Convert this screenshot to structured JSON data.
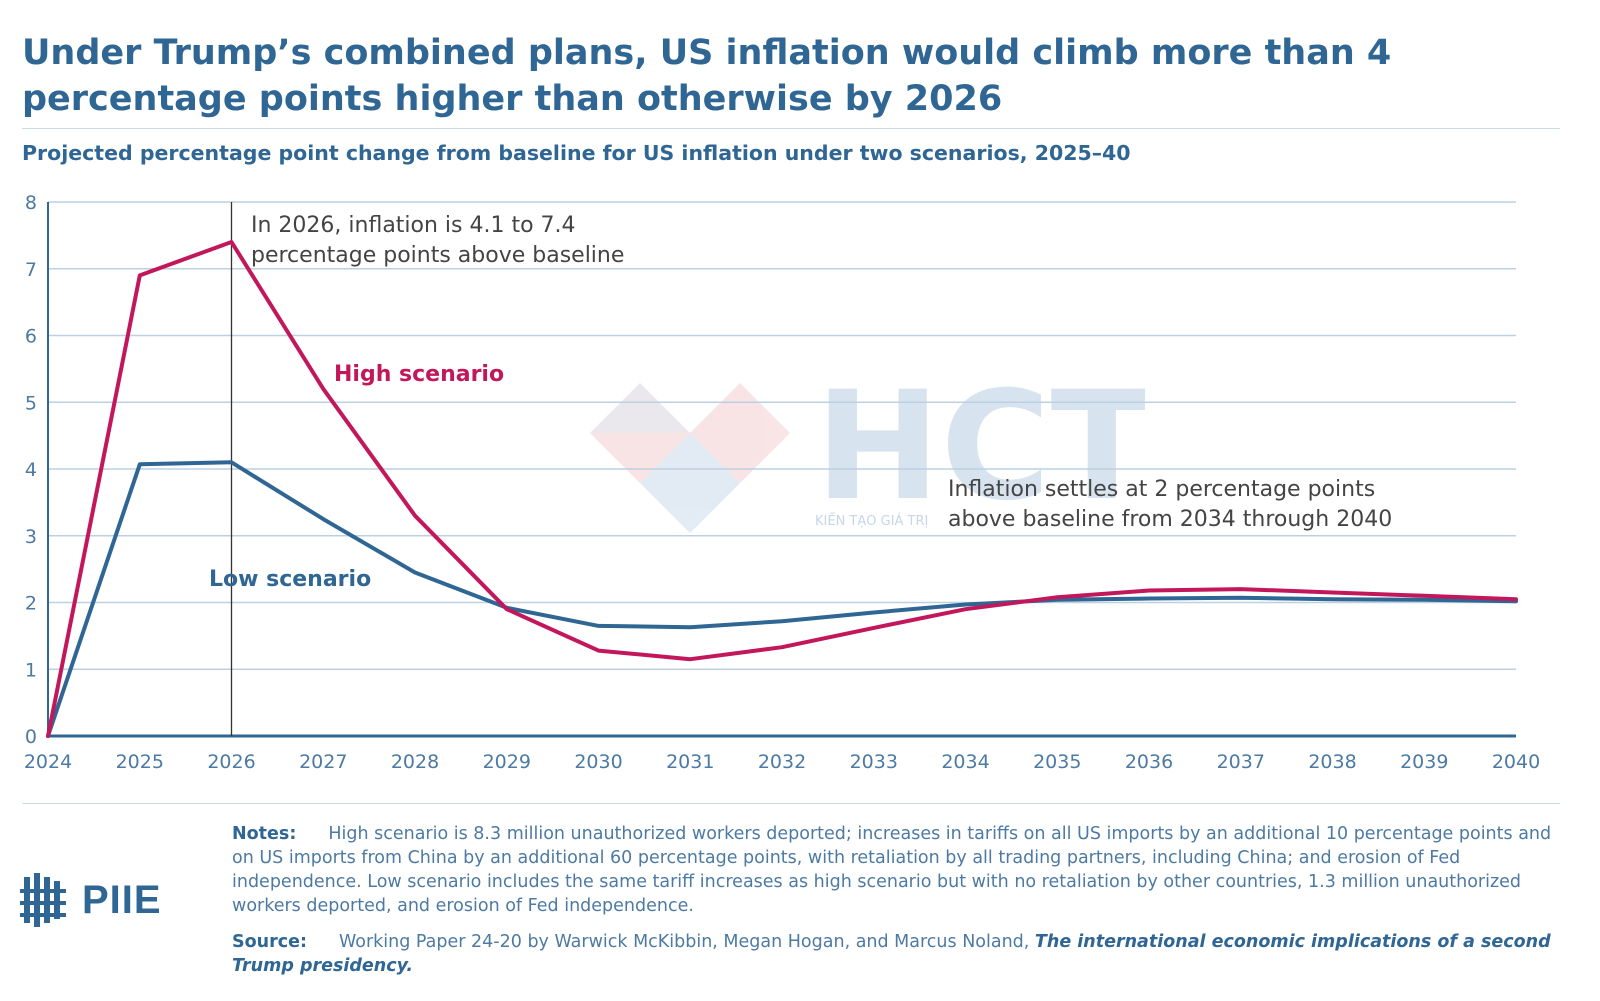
{
  "title": "Under Trump’s combined plans, US inflation would climb more than 4 percentage points higher than otherwise by 2026",
  "subtitle": "Projected percentage point change from baseline for US inflation under two scenarios, 2025–40",
  "chart_data": {
    "type": "line",
    "x": [
      2024,
      2025,
      2026,
      2027,
      2028,
      2029,
      2030,
      2031,
      2032,
      2033,
      2034,
      2035,
      2036,
      2037,
      2038,
      2039,
      2040
    ],
    "series": [
      {
        "name": "High scenario",
        "color": "#c2185b",
        "values": [
          0,
          6.9,
          7.4,
          5.2,
          3.3,
          1.9,
          1.28,
          1.15,
          1.33,
          1.62,
          1.9,
          2.08,
          2.18,
          2.2,
          2.15,
          2.1,
          2.05
        ]
      },
      {
        "name": "Low scenario",
        "color": "#2f6694",
        "values": [
          0,
          4.07,
          4.1,
          3.25,
          2.45,
          1.92,
          1.65,
          1.63,
          1.72,
          1.85,
          1.97,
          2.04,
          2.06,
          2.07,
          2.05,
          2.04,
          2.02
        ]
      }
    ],
    "ylim": [
      0,
      8
    ],
    "yticks": [
      "0",
      "1",
      "2",
      "3",
      "4",
      "5",
      "6",
      "7",
      "8"
    ],
    "xticks": [
      "2024",
      "2025",
      "2026",
      "2027",
      "2028",
      "2029",
      "2030",
      "2031",
      "2032",
      "2033",
      "2034",
      "2035",
      "2036",
      "2037",
      "2038",
      "2039",
      "2040"
    ],
    "grid": true,
    "marker_x": 2026,
    "annotations": [
      {
        "id": "peak",
        "lines": [
          "In 2026, inflation is 4.1 to 7.4",
          "percentage points above baseline"
        ]
      },
      {
        "id": "settle",
        "lines": [
          "Inflation settles at 2 percentage points",
          "above baseline from 2034 through 2040"
        ]
      }
    ],
    "series_labels": {
      "high": "High scenario",
      "low": "Low scenario"
    }
  },
  "watermark": {
    "text": "HCT",
    "tagline": "KIẾN TẠO GIÁ TRỊ"
  },
  "logo": {
    "text": "PIIE"
  },
  "notes": {
    "label": "Notes:",
    "text": "High scenario is 8.3 million unauthorized workers deported; increases in tariffs on all US imports by an additional 10 percentage points and on US imports from China by an additional 60 percentage points, with retaliation by all trading partners, including China; and erosion of Fed independence. Low scenario includes the same tariff increases as high scenario but with no retaliation by other countries, 1.3 million unauthorized workers deported, and erosion of Fed independence."
  },
  "source": {
    "label": "Source:",
    "text": "Working Paper 24-20 by Warwick McKibbin, Megan Hogan, and Marcus Noland, ",
    "title": "The international economic implications of a second Trump presidency."
  }
}
